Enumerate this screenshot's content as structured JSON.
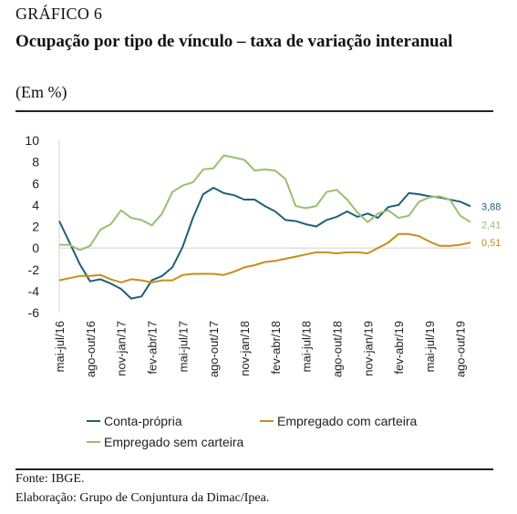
{
  "figure": {
    "caption": "GRÁFICO 6",
    "title": "Ocupação por tipo de vínculo – taxa de variação interanual",
    "unit": "(Em %)",
    "source": "Fonte: IBGE.",
    "elaboration": "Elaboração: Grupo de Conjuntura da Dimac/Ipea."
  },
  "chart_data": {
    "type": "line",
    "ylim": [
      -6,
      10
    ],
    "yticks": [
      -6,
      -4,
      -2,
      0,
      2,
      4,
      6,
      8,
      10
    ],
    "x_tick_labels": [
      "mai-jul/16",
      "ago-out/16",
      "nov-jan/17",
      "fev-abr/17",
      "mai-jul/17",
      "ago-out/17",
      "nov-jan/18",
      "fev-abr/18",
      "mai-jul/18",
      "ago-out/18",
      "nov-jan/19",
      "fev-abr/19",
      "mai-jul/19",
      "ago-out/19"
    ],
    "points_per_series": 41,
    "legend_position": "bottom",
    "series": [
      {
        "name": "Conta-própria",
        "color": "#1f5f7a",
        "end_label": "3,88",
        "values": [
          2.5,
          0.5,
          -1.5,
          -3.1,
          -2.9,
          -3.3,
          -3.8,
          -4.7,
          -4.5,
          -3.0,
          -2.6,
          -1.8,
          0.1,
          2.8,
          5.0,
          5.6,
          5.1,
          4.9,
          4.5,
          4.5,
          3.9,
          3.4,
          2.6,
          2.5,
          2.2,
          2.0,
          2.6,
          2.9,
          3.4,
          2.9,
          3.2,
          2.8,
          3.8,
          4.0,
          5.1,
          5.0,
          4.8,
          4.7,
          4.5,
          4.3,
          3.88
        ]
      },
      {
        "name": "Empregado com carteira",
        "color": "#c2901a",
        "end_label": "0,51",
        "values": [
          -3.0,
          -2.8,
          -2.6,
          -2.6,
          -2.5,
          -2.9,
          -3.2,
          -2.9,
          -3.0,
          -3.2,
          -3.0,
          -3.0,
          -2.5,
          -2.4,
          -2.4,
          -2.4,
          -2.5,
          -2.2,
          -1.8,
          -1.6,
          -1.3,
          -1.2,
          -1.0,
          -0.8,
          -0.6,
          -0.4,
          -0.4,
          -0.5,
          -0.4,
          -0.4,
          -0.5,
          0.0,
          0.5,
          1.3,
          1.3,
          1.1,
          0.6,
          0.2,
          0.2,
          0.3,
          0.51
        ]
      },
      {
        "name": "Empregado sem carteira",
        "color": "#98c070",
        "end_label": "2,41",
        "values": [
          0.3,
          0.3,
          -0.2,
          0.2,
          1.7,
          2.2,
          3.5,
          2.8,
          2.6,
          2.1,
          3.2,
          5.2,
          5.8,
          6.1,
          7.3,
          7.4,
          8.6,
          8.4,
          8.2,
          7.2,
          7.3,
          7.2,
          6.4,
          3.9,
          3.7,
          3.9,
          5.2,
          5.4,
          4.5,
          3.3,
          2.4,
          3.2,
          3.5,
          2.8,
          3.0,
          4.3,
          4.7,
          4.8,
          4.5,
          3.0,
          2.41
        ]
      }
    ]
  }
}
